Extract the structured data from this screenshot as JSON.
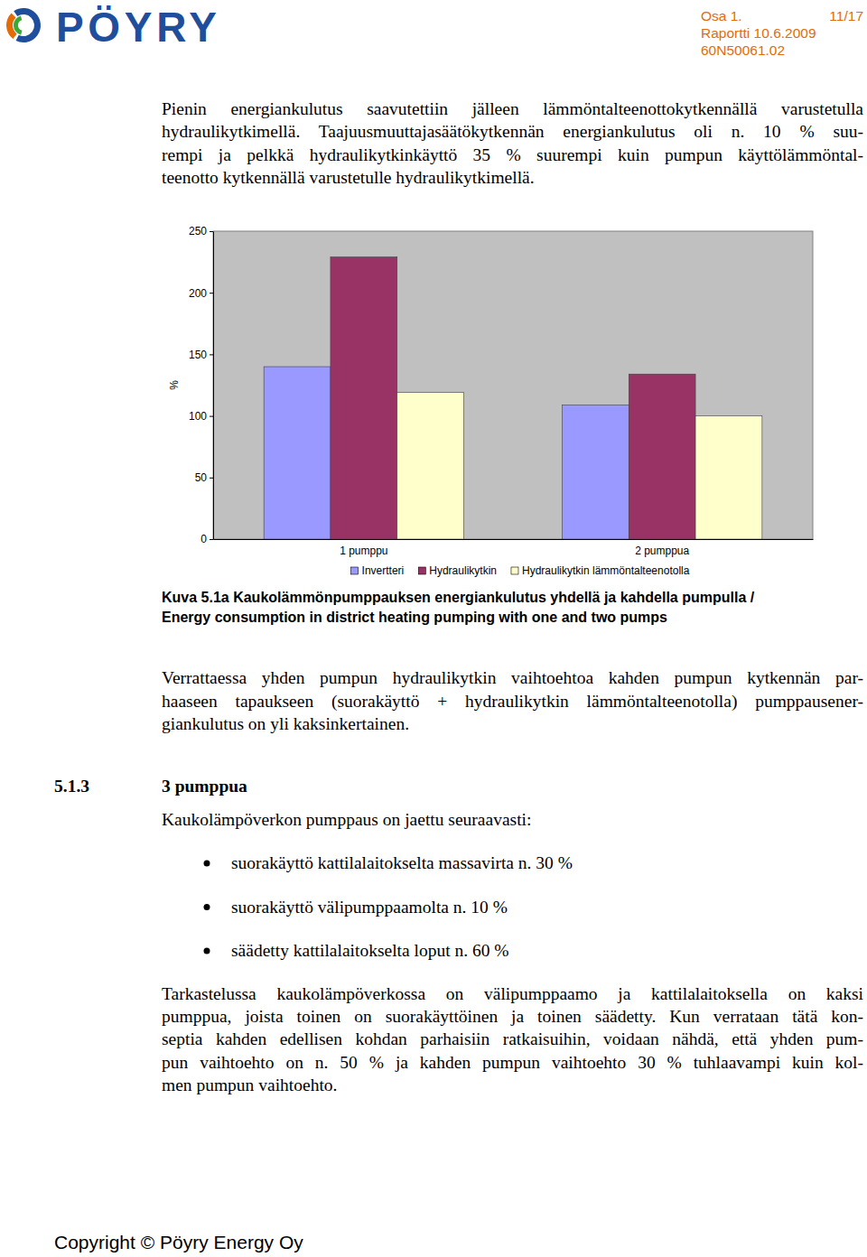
{
  "header": {
    "logo": "PÖYRY",
    "part": "Osa 1.",
    "page": "11/17",
    "report": "Raportti 10.6.2009",
    "code": "60N50061.02"
  },
  "intro": {
    "lines": [
      "Pienin energiankulutus saavutettiin jälleen lämmöntalteenottokytkennällä varustetulla",
      "hydraulikytkimellä. Taajuusmuuttajasäätökytkennän energiankulutus oli n. 10 % suu-",
      "rempi ja pelkkä hydraulikytkinkäyttö 35 % suurempi kuin pumpun käyttölämmöntal-",
      "teenotto kytkennällä varustetulle hydraulikytkimellä."
    ]
  },
  "chart_data": {
    "type": "bar",
    "categories": [
      "1 pumppu",
      "2 pumppua"
    ],
    "series": [
      {
        "name": "Invertteri",
        "color": "#9999ff",
        "values": [
          140,
          109
        ]
      },
      {
        "name": "Hydraulikytkin",
        "color": "#993366",
        "values": [
          229,
          134
        ]
      },
      {
        "name": "Hydraulikytkin lämmöntalteenotolla",
        "color": "#ffffcc",
        "values": [
          119,
          100
        ]
      }
    ],
    "y_label": "%",
    "ylim": [
      0,
      250
    ],
    "yticks": [
      0,
      50,
      100,
      150,
      200,
      250
    ],
    "grid": false,
    "legend": "bottom"
  },
  "caption": {
    "lines": [
      "Kuva 5.1a Kaukolämmönpumppauksen energiankulutus yhdellä ja kahdella pumpulla /",
      "Energy consumption in district heating pumping with one and two pumps"
    ]
  },
  "comparison": {
    "lines": [
      "Verrattaessa yhden pumpun hydraulikytkin vaihtoehtoa kahden pumpun kytkennän par-",
      "haaseen tapaukseen (suorakäyttö + hydraulikytkin lämmöntalteenotolla) pumppausener-",
      "giankulutus on yli kaksinkertainen."
    ]
  },
  "section": {
    "number": "5.1.3",
    "title": "3 pumppua",
    "lead": "Kaukolämpöverkon pumppaus on jaettu seuraavasti:",
    "bullets": [
      "suorakäyttö kattilalaitokselta massavirta n. 30 %",
      "suorakäyttö välipumppaamolta n. 10 %",
      "säädetty kattilalaitokselta loput n. 60 %"
    ],
    "lines": [
      "Tarkastelussa kaukolämpöverkossa on välipumppaamo ja kattilalaitoksella on kaksi",
      "pumppua, joista toinen on suorakäyttöinen ja toinen säädetty. Kun verrataan tätä kon-",
      "septia kahden edellisen kohdan parhaisiin ratkaisuihin, voidaan nähdä, että yhden pum-",
      "pun vaihtoehto on n. 50 % ja kahden pumpun vaihtoehto 30 % tuhlaavampi kuin kol-",
      "men pumpun vaihtoehto."
    ]
  },
  "footer": "Copyright © Pöyry Energy Oy"
}
